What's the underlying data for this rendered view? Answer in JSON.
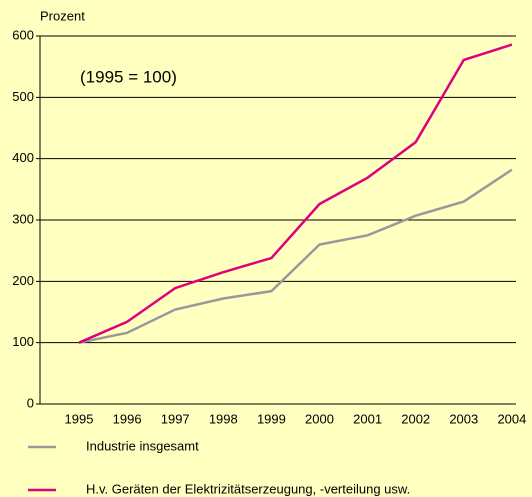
{
  "chart_data": {
    "type": "line",
    "y_label": "Prozent",
    "annotation": "(1995 = 100)",
    "categories": [
      "1995",
      "1996",
      "1997",
      "1998",
      "1999",
      "2000",
      "2001",
      "2002",
      "2003",
      "2004"
    ],
    "series": [
      {
        "name": "Industrie insgesamt",
        "color": "#999999",
        "values": [
          100,
          116,
          154,
          172,
          184,
          260,
          275,
          307,
          330,
          382
        ]
      },
      {
        "name": "H.v. Geräten der Elektrizitätserzeugung, -verteilung usw.",
        "color": "#e0007a",
        "values": [
          100,
          134,
          189,
          215,
          238,
          326,
          369,
          427,
          561,
          586
        ]
      }
    ],
    "ylim": [
      0,
      600
    ],
    "yticks": [
      0,
      100,
      200,
      300,
      400,
      500,
      600
    ],
    "grid": true
  }
}
